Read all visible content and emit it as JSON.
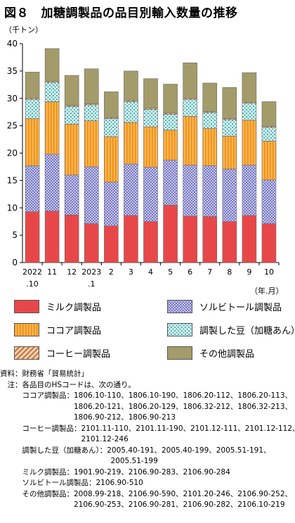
{
  "title": "図８　加糖調製品の品目別輸入数量の推移",
  "unit_label": "（千トン）",
  "x_unit_label": "（年.月）",
  "colors": {
    "milk": "#e8474a",
    "sorbitol": "#6a6ac8",
    "cocoa": "#f6a833",
    "bean": "#5fc2c2",
    "coffee": "#d9905a",
    "other": "#a39b6a"
  },
  "chart_data": {
    "type": "bar",
    "stacked": true,
    "categories": [
      [
        "2022",
        ".10"
      ],
      [
        "11",
        ""
      ],
      [
        "12",
        ""
      ],
      [
        "2023",
        ".1"
      ],
      [
        "2",
        ""
      ],
      [
        "3",
        ""
      ],
      [
        "4",
        ""
      ],
      [
        "5",
        ""
      ],
      [
        "6",
        ""
      ],
      [
        "7",
        ""
      ],
      [
        "8",
        ""
      ],
      [
        "9",
        ""
      ],
      [
        "10",
        ""
      ]
    ],
    "ylim": [
      0,
      40
    ],
    "yticks": [
      0,
      5,
      10,
      15,
      20,
      25,
      30,
      35,
      40
    ],
    "grid": false,
    "series": [
      {
        "key": "milk",
        "name": "ミルク調製品",
        "values": [
          9.3,
          9.4,
          8.7,
          7.1,
          6.7,
          8.6,
          7.5,
          10.5,
          8.5,
          8.4,
          7.5,
          8.6,
          7.1
        ]
      },
      {
        "key": "sorbitol",
        "name": "ソルビトール調製品",
        "values": [
          8.4,
          10.4,
          7.3,
          10.4,
          8.0,
          9.4,
          9.9,
          8.2,
          9.3,
          9.3,
          9.6,
          9.2,
          8.0
        ]
      },
      {
        "key": "cocoa",
        "name": "ココア調製品",
        "values": [
          8.6,
          9.6,
          9.3,
          8.4,
          8.3,
          7.6,
          7.4,
          5.5,
          8.9,
          6.8,
          6.0,
          8.2,
          7.1
        ]
      },
      {
        "key": "bean",
        "name": "調製した豆（加糖あん）",
        "values": [
          3.5,
          3.5,
          3.2,
          2.9,
          3.3,
          3.8,
          3.2,
          2.9,
          3.1,
          2.9,
          3.0,
          3.1,
          2.5
        ]
      },
      {
        "key": "coffee",
        "name": "コーヒー調製品",
        "values": [
          0.2,
          0.2,
          0.2,
          0.2,
          0.2,
          0.2,
          0.2,
          0.2,
          0.2,
          0.2,
          0.2,
          0.2,
          0.2
        ]
      },
      {
        "key": "other",
        "name": "その他調製品",
        "values": [
          4.8,
          6.0,
          5.5,
          6.4,
          4.7,
          5.4,
          5.4,
          5.3,
          6.5,
          5.2,
          5.7,
          5.4,
          4.5
        ]
      }
    ],
    "legend_order": [
      "milk",
      "sorbitol",
      "cocoa",
      "bean",
      "coffee",
      "other"
    ]
  },
  "notes": [
    "資料：財務省「貿易統計」",
    "　注：各品目のHSコードは、次の通り。",
    "　　　ココア調製品：1806.10-110、1806.10-190、1806.20-112、1806.20-113、",
    "　　　　　　　　　　1806.20-121、1806.20-129、1806.32-212、1806.32-213、",
    "　　　　　　　　　　1806.90-212、1806.90-213",
    "　　　コーヒー調製品：2101.11-110、2101.11-190、2101.12-111、2101.12-112、",
    "　　　　　　　　　　　2101.12-246",
    "　　　調製した豆（加糖あん）：2005.40-191、2005.40-199、2005.51-191、",
    "　　　　　　　　　　　　　　　2005.51-199",
    "　　　ミルク調製品：1901.90-219、2106.90-283、2106.90-284",
    "　　　ソルビトール調製品：2106.90-510",
    "　　　その他調製品：2008.99-218、2106.90-590、2101.20-246、2106.90-252、",
    "　　　　　　　　　　2106.90-253、2106.90-281、2106.90-282、2106.10-219"
  ]
}
